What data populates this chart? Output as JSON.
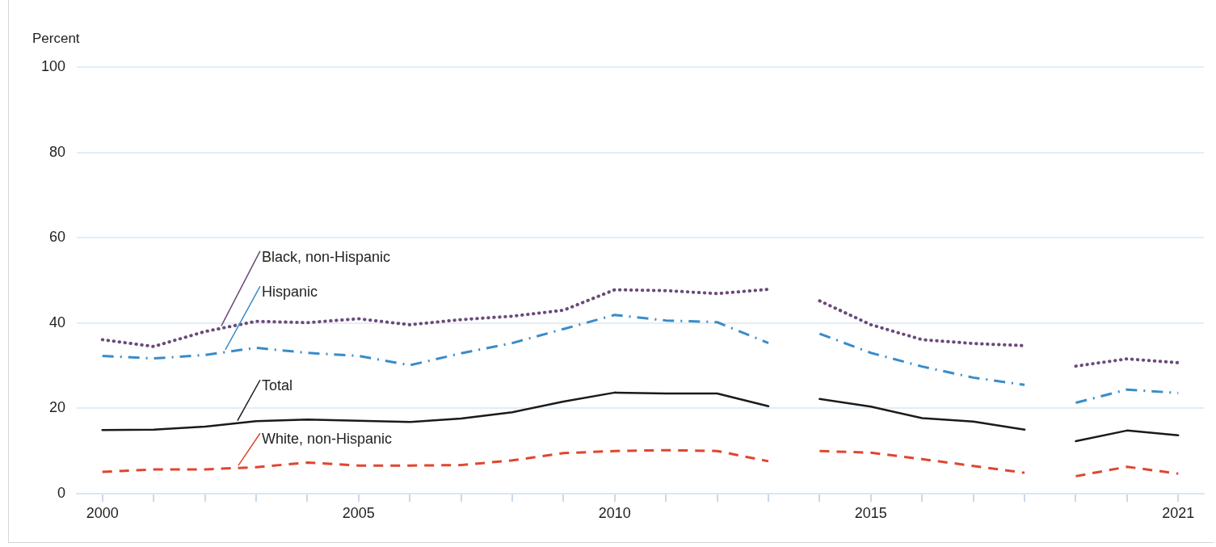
{
  "chart_data": {
    "type": "line",
    "ylabel": "Percent",
    "xlim": [
      1999.5,
      2021.5
    ],
    "xticks": [
      2000,
      {
        "value": 2001,
        "label": null
      },
      {
        "value": 2002,
        "label": null
      },
      {
        "value": 2003,
        "label": null
      },
      {
        "value": 2004,
        "label": null
      },
      2005,
      {
        "value": 2006,
        "label": null
      },
      {
        "value": 2007,
        "label": null
      },
      {
        "value": 2008,
        "label": null
      },
      {
        "value": 2009,
        "label": null
      },
      2010,
      {
        "value": 2011,
        "label": null
      },
      {
        "value": 2012,
        "label": null
      },
      {
        "value": 2013,
        "label": null
      },
      {
        "value": 2014,
        "label": null
      },
      2015,
      {
        "value": 2016,
        "label": null
      },
      {
        "value": 2017,
        "label": null
      },
      {
        "value": 2018,
        "label": null
      },
      {
        "value": 2019,
        "label": null
      },
      {
        "value": 2020,
        "label": null
      },
      2021
    ],
    "ylim": [
      0,
      100
    ],
    "yticks": [
      0,
      20,
      40,
      60,
      80,
      100
    ],
    "grid": "y",
    "legend": false,
    "marker": "none",
    "series": [
      {
        "name": "Black, non-Hispanic",
        "color": "#6b4a7a",
        "line_style": "dotted",
        "x": [
          2000,
          2001,
          2002,
          2003,
          2004,
          2005,
          2006,
          2007,
          2008,
          2009,
          2010,
          2011,
          2012,
          2013
        ],
        "values": [
          36.1,
          34.5,
          38.0,
          40.4,
          40.1,
          41.0,
          39.6,
          40.8,
          41.6,
          43.0,
          47.8,
          47.6,
          46.9,
          47.9
        ]
      },
      {
        "color": "#6b4a7a",
        "line_style": "dotted",
        "x": [
          2014,
          2015,
          2016,
          2017,
          2018
        ],
        "values": [
          45.2,
          39.6,
          36.1,
          35.2,
          34.7
        ]
      },
      {
        "color": "#6b4a7a",
        "line_style": "dotted",
        "x": [
          2019,
          2020,
          2021
        ],
        "values": [
          29.9,
          31.6,
          30.7
        ]
      },
      {
        "name": "Hispanic",
        "color": "#3a8cc8",
        "line_style": "dashdot",
        "x": [
          2000,
          2001,
          2002,
          2003,
          2004,
          2005,
          2006,
          2007,
          2008,
          2009,
          2010,
          2011,
          2012,
          2013
        ],
        "values": [
          32.3,
          31.7,
          32.5,
          34.2,
          33.0,
          32.3,
          30.1,
          32.9,
          35.3,
          38.6,
          41.9,
          40.6,
          40.2,
          35.3
        ]
      },
      {
        "color": "#3a8cc8",
        "line_style": "dashdot",
        "x": [
          2014,
          2015,
          2016,
          2017,
          2018
        ],
        "values": [
          37.5,
          33.0,
          29.8,
          27.2,
          25.5
        ]
      },
      {
        "color": "#3a8cc8",
        "line_style": "dashdot",
        "x": [
          2019,
          2020,
          2021
        ],
        "values": [
          21.3,
          24.4,
          23.6
        ]
      },
      {
        "name": "Total",
        "color": "#1a1a1a",
        "line_style": "solid",
        "x": [
          2000,
          2001,
          2002,
          2003,
          2004,
          2005,
          2006,
          2007,
          2008,
          2009,
          2010,
          2011,
          2012,
          2013
        ],
        "values": [
          14.9,
          15.0,
          15.7,
          17.0,
          17.4,
          17.1,
          16.8,
          17.6,
          19.1,
          21.6,
          23.7,
          23.5,
          23.5,
          20.5
        ]
      },
      {
        "color": "#1a1a1a",
        "line_style": "solid",
        "x": [
          2014,
          2015,
          2016,
          2017,
          2018
        ],
        "values": [
          22.2,
          20.4,
          17.7,
          16.9,
          15.0
        ]
      },
      {
        "color": "#1a1a1a",
        "line_style": "solid",
        "x": [
          2019,
          2020,
          2021
        ],
        "values": [
          12.3,
          14.8,
          13.7
        ]
      },
      {
        "name": "White, non-Hispanic",
        "color": "#e0452f",
        "line_style": "dashed",
        "x": [
          2000,
          2001,
          2002,
          2003,
          2004,
          2005,
          2006,
          2007,
          2008,
          2009,
          2010,
          2011,
          2012,
          2013
        ],
        "values": [
          5.1,
          5.7,
          5.7,
          6.2,
          7.3,
          6.6,
          6.6,
          6.7,
          7.8,
          9.5,
          10.0,
          10.2,
          10.0,
          7.6
        ]
      },
      {
        "color": "#e0452f",
        "line_style": "dashed",
        "x": [
          2014,
          2015,
          2016,
          2017,
          2018
        ],
        "values": [
          10.0,
          9.6,
          8.1,
          6.5,
          4.9
        ]
      },
      {
        "color": "#e0452f",
        "line_style": "dashed",
        "x": [
          2019,
          2020,
          2021
        ],
        "values": [
          4.1,
          6.3,
          4.7
        ]
      }
    ]
  }
}
